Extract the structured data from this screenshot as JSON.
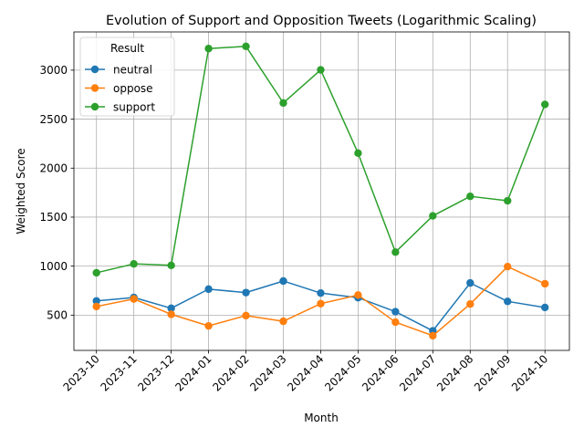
{
  "chart_data": {
    "type": "line",
    "title": "Evolution of Support and Opposition Tweets (Logarithmic Scaling)",
    "xlabel": "Month",
    "ylabel": "Weighted Score",
    "categories": [
      "2023-10",
      "2023-11",
      "2023-12",
      "2024-01",
      "2024-02",
      "2024-03",
      "2024-04",
      "2024-05",
      "2024-06",
      "2024-07",
      "2024-08",
      "2024-09",
      "2024-10"
    ],
    "yticks": [
      500,
      1000,
      1500,
      2000,
      2500,
      3000
    ],
    "ylim": [
      140,
      3390
    ],
    "grid": true,
    "legend": {
      "title": "Result",
      "placement": "top-left"
    },
    "series": [
      {
        "name": "neutral",
        "color": "#1f77b4",
        "values": [
          645,
          680,
          570,
          765,
          730,
          848,
          725,
          678,
          535,
          340,
          828,
          640,
          578
        ]
      },
      {
        "name": "oppose",
        "color": "#ff7f0e",
        "values": [
          588,
          665,
          508,
          390,
          495,
          437,
          617,
          705,
          428,
          290,
          613,
          995,
          820
        ]
      },
      {
        "name": "support",
        "color": "#2ca02c",
        "values": [
          932,
          1023,
          1008,
          3220,
          3243,
          2665,
          3003,
          2153,
          1143,
          1513,
          1712,
          1667,
          2650
        ]
      }
    ]
  }
}
